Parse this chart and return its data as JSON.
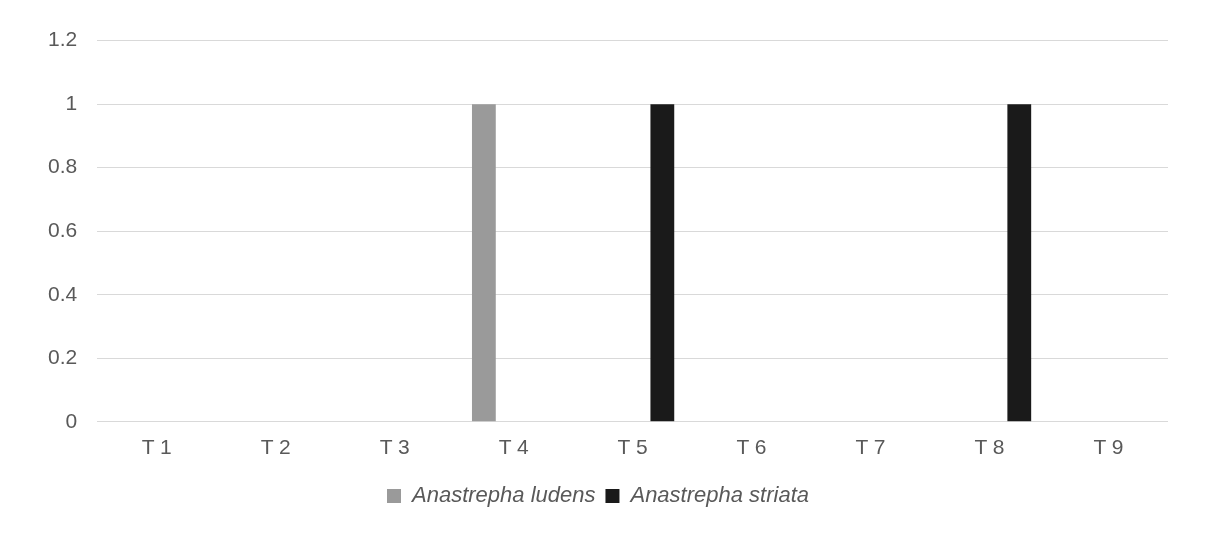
{
  "chart_data": {
    "type": "bar",
    "categories": [
      "T 1",
      "T 2",
      "T 3",
      "T 4",
      "T 5",
      "T 6",
      "T 7",
      "T 8",
      "T 9"
    ],
    "series": [
      {
        "name": "Anastrepha ludens",
        "color": "#9a9a9a",
        "values": [
          0,
          0,
          0,
          1,
          0,
          0,
          0,
          0,
          0
        ]
      },
      {
        "name": "Anastrepha striata",
        "color": "#1a1a1a",
        "values": [
          0,
          0,
          0,
          0,
          1,
          0,
          0,
          1,
          0
        ]
      }
    ],
    "ylim": [
      0,
      1.2
    ],
    "yticks": [
      0,
      0.2,
      0.4,
      0.6,
      0.8,
      1,
      1.2
    ],
    "grid": "y",
    "legend": "bottom"
  }
}
